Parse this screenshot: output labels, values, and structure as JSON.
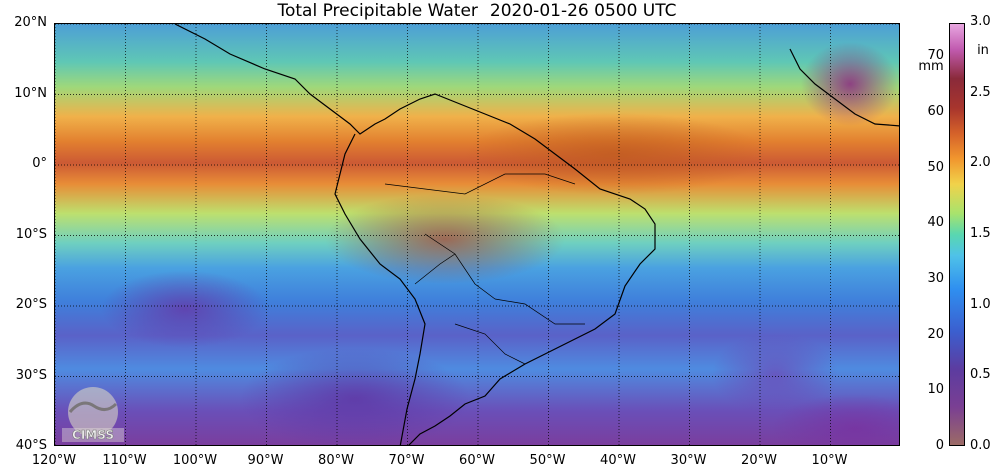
{
  "title": {
    "product": "Total Precipitable Water",
    "datetime": "2020-01-26 0500 UTC"
  },
  "map": {
    "lon_range": [
      -120,
      0
    ],
    "lat_range": [
      -40,
      20
    ],
    "lat_ticks": [
      {
        "value": 20,
        "label": "20°N"
      },
      {
        "value": 10,
        "label": "10°N"
      },
      {
        "value": 0,
        "label": "0°"
      },
      {
        "value": -10,
        "label": "10°S"
      },
      {
        "value": -20,
        "label": "20°S"
      },
      {
        "value": -30,
        "label": "30°S"
      },
      {
        "value": -40,
        "label": "40°S"
      }
    ],
    "lon_ticks": [
      {
        "value": -120,
        "label": "120°W"
      },
      {
        "value": -110,
        "label": "110°W"
      },
      {
        "value": -100,
        "label": "100°W"
      },
      {
        "value": -90,
        "label": "90°W"
      },
      {
        "value": -80,
        "label": "80°W"
      },
      {
        "value": -70,
        "label": "70°W"
      },
      {
        "value": -60,
        "label": "60°W"
      },
      {
        "value": -50,
        "label": "50°W"
      },
      {
        "value": -40,
        "label": "40°W"
      },
      {
        "value": -30,
        "label": "30°W"
      },
      {
        "value": -20,
        "label": "20°W"
      },
      {
        "value": -10,
        "label": "10°W"
      }
    ],
    "gridlines": "dotted",
    "coastlines": true
  },
  "colorbar": {
    "mm_unit": "mm",
    "in_unit": "in",
    "mm_range": [
      0,
      76
    ],
    "mm_ticks": [
      "0",
      "10",
      "20",
      "30",
      "40",
      "50",
      "60",
      "70"
    ],
    "in_ticks": [
      "0.0",
      "0.5",
      "1.0",
      "1.5",
      "2.0",
      "2.5",
      "3.0"
    ]
  },
  "logo": {
    "text": "CIMSS"
  }
}
